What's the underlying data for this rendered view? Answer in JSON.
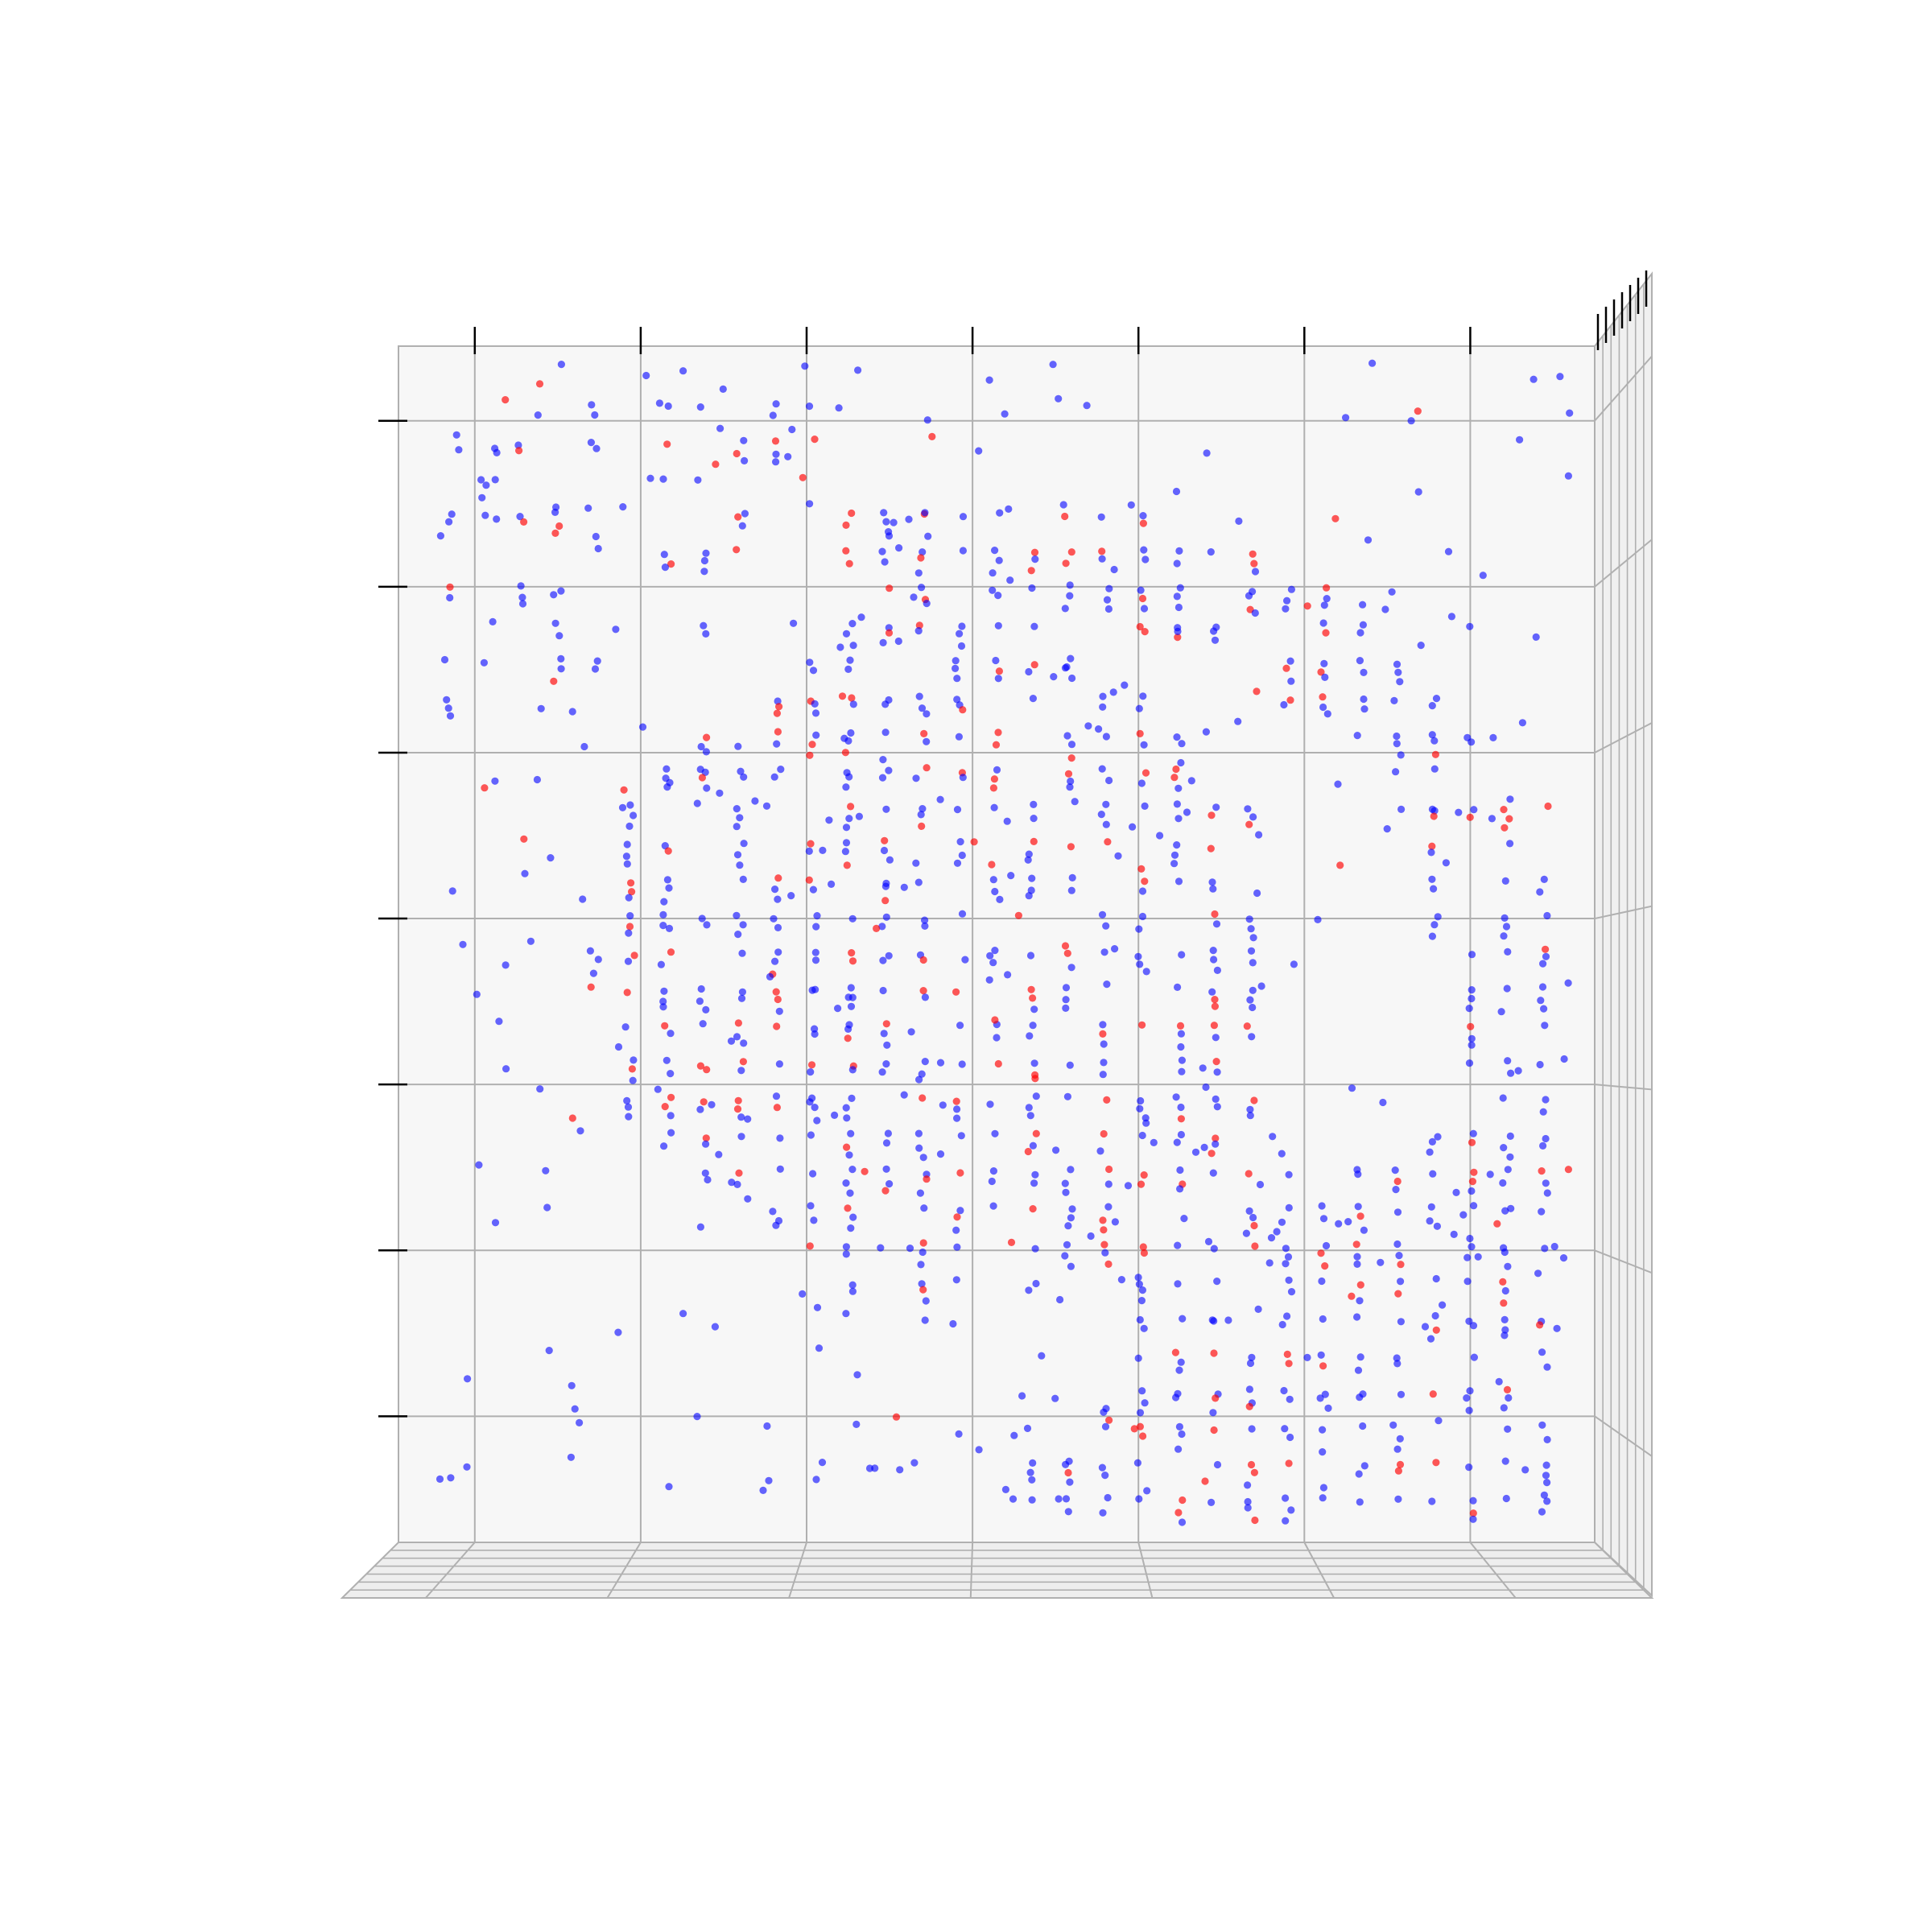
{
  "chart_data": {
    "type": "scatter",
    "projection": "3d",
    "view": "top-down",
    "title": "",
    "xlabel": "",
    "ylabel": "",
    "zlabel": "",
    "x_ticks": [
      0,
      1,
      2,
      3,
      4,
      5,
      6
    ],
    "y_ticks": [
      0,
      1,
      2,
      3,
      4,
      5,
      6
    ],
    "z_ticks": [
      0,
      1,
      2,
      3,
      4,
      5,
      6
    ],
    "tick_labels_visible": false,
    "xlim": [
      -0.46,
      6.75
    ],
    "ylim": [
      -0.76,
      6.45
    ],
    "grid": true,
    "legend": "none",
    "pane_color": "#f7f7f7",
    "grid_color": "#b0b0b0",
    "series": [
      {
        "color": "#ff0000",
        "alpha": 0.65,
        "approx_points": 1300,
        "shape": "grid-structured voxel points with scattered noise"
      },
      {
        "color": "#0000ff",
        "alpha": 0.6,
        "approx_points": 4200,
        "shape": "grid-structured voxel points with scattered noise"
      }
    ],
    "structure": {
      "grid_step": 0.22,
      "regions": [
        {
          "region": "center-blob",
          "center": [
            2.8,
            2.8
          ],
          "radius": 2.1
        },
        {
          "region": "ring-arc",
          "center": [
            3.3,
            2.3
          ],
          "inner_radius": 2.55,
          "outer_radius": 3.3,
          "angle_from_deg": -90,
          "angle_to_deg": 110
        },
        {
          "region": "bottom-right-band",
          "x": [
            4.0,
            6.5
          ],
          "y": [
            -0.7,
            1.6
          ]
        },
        {
          "region": "top-left-cluster",
          "x": [
            -0.3,
            2.4
          ],
          "y": [
            4.2,
            6.35
          ]
        }
      ]
    }
  }
}
